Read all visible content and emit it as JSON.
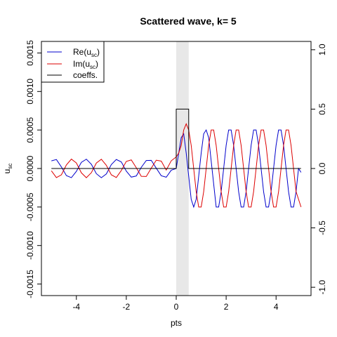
{
  "chart_data": {
    "type": "line",
    "title": "Scattered wave, k= 5",
    "xlabel": "pts",
    "ylabel": "u",
    "ylabel_sub": "sc",
    "xlim": [
      -5.4,
      5.4
    ],
    "ylim_left": [
      -0.00165,
      0.00165
    ],
    "ylim_right": [
      -1.07,
      1.07
    ],
    "x_ticks": [
      -4,
      -2,
      0,
      2,
      4
    ],
    "x_tick_labels": [
      "-4",
      "-2",
      "0",
      "2",
      "4"
    ],
    "y_left_ticks": [
      -0.0015,
      -0.001,
      -0.0005,
      0,
      0.0005,
      0.001,
      0.0015
    ],
    "y_left_tick_labels": [
      "-0.0015",
      "-0.0010",
      "-0.0005",
      "0.0000",
      "0.0005",
      "0.0010",
      "0.0015"
    ],
    "y_right_ticks": [
      -1.0,
      -0.5,
      0.0,
      0.5,
      1.0
    ],
    "y_right_tick_labels": [
      "-1.0",
      "-0.5",
      "0.0",
      "0.5",
      "1.0"
    ],
    "shaded_region": {
      "x": [
        0,
        0.5
      ],
      "color": "#e8e8e8"
    },
    "legend": {
      "placement": "top-left",
      "entries": [
        {
          "main": "Re(u",
          "sub": "sc",
          "tail": ")",
          "color": "#0000cc"
        },
        {
          "main": "Im(u",
          "sub": "sc",
          "tail": ")",
          "color": "#dd0000"
        },
        {
          "main": "coeffs.",
          "sub": "",
          "tail": "",
          "color": "#000000"
        }
      ]
    },
    "series": [
      {
        "name": "Re(usc)",
        "color": "#0000cc",
        "axis": "left",
        "x": [
          -5.0,
          -4.8,
          -4.6,
          -4.4,
          -4.2,
          -4.0,
          -3.8,
          -3.6,
          -3.4,
          -3.2,
          -3.0,
          -2.8,
          -2.6,
          -2.4,
          -2.2,
          -2.0,
          -1.8,
          -1.6,
          -1.4,
          -1.2,
          -1.0,
          -0.8,
          -0.6,
          -0.4,
          -0.2,
          0.0,
          0.1,
          0.2,
          0.3,
          0.4,
          0.5,
          0.6,
          0.7,
          0.8,
          0.9,
          1.0,
          1.1,
          1.2,
          1.3,
          1.4,
          1.5,
          1.6,
          1.7,
          1.8,
          1.9,
          2.0,
          2.1,
          2.2,
          2.3,
          2.4,
          2.5,
          2.6,
          2.7,
          2.8,
          2.9,
          3.0,
          3.1,
          3.2,
          3.3,
          3.4,
          3.5,
          3.6,
          3.7,
          3.8,
          3.9,
          4.0,
          4.1,
          4.2,
          4.3,
          4.4,
          4.5,
          4.6,
          4.7,
          4.8,
          4.9,
          5.0
        ],
        "y": [
          9.9e-05,
          0.000117,
          2e-05,
          -9.2e-05,
          -0.000119,
          -3.7e-05,
          8e-05,
          0.000121,
          5.5e-05,
          -6.7e-05,
          -0.00012,
          -7.1e-05,
          5.1e-05,
          0.000117,
          8.5e-05,
          -3.4e-05,
          -0.000112,
          -9.7e-05,
          1.5e-05,
          0.000104,
          0.000106,
          4e-06,
          -9.4e-05,
          -0.000113,
          -2.2e-05,
          0.0,
          0.0002,
          0.0004,
          0.00045,
          0.0002,
          -0.0001,
          -0.0004,
          -0.0005,
          -0.0004,
          -0.0001,
          0.0002,
          0.00045,
          0.0005,
          0.0004,
          0.0001,
          -0.0002,
          -0.0005,
          -0.0005,
          -0.0003,
          0.0,
          0.0003,
          0.0005,
          0.0005,
          0.0003,
          0.0,
          -0.0003,
          -0.0005,
          -0.0005,
          -0.0003,
          0.0,
          0.0003,
          0.0005,
          0.0005,
          0.0003,
          0.0,
          -0.0003,
          -0.0005,
          -0.0005,
          -0.0003,
          0.0,
          0.0003,
          0.0005,
          0.0005,
          0.0003,
          0.0,
          -0.0003,
          -0.0005,
          -0.0005,
          -0.0003,
          0.0,
          -5e-05
        ]
      },
      {
        "name": "Im(usc)",
        "color": "#dd0000",
        "axis": "left",
        "x": [
          -5.0,
          -4.8,
          -4.6,
          -4.4,
          -4.2,
          -4.0,
          -3.8,
          -3.6,
          -3.4,
          -3.2,
          -3.0,
          -2.8,
          -2.6,
          -2.4,
          -2.2,
          -2.0,
          -1.8,
          -1.6,
          -1.4,
          -1.2,
          -1.0,
          -0.8,
          -0.6,
          -0.4,
          -0.2,
          0.0,
          0.1,
          0.2,
          0.3,
          0.4,
          0.5,
          0.6,
          0.7,
          0.8,
          0.9,
          1.0,
          1.1,
          1.2,
          1.3,
          1.4,
          1.5,
          1.6,
          1.7,
          1.8,
          1.9,
          2.0,
          2.1,
          2.2,
          2.3,
          2.4,
          2.5,
          2.6,
          2.7,
          2.8,
          2.9,
          3.0,
          3.1,
          3.2,
          3.3,
          3.4,
          3.5,
          3.6,
          3.7,
          3.8,
          3.9,
          4.0,
          4.1,
          4.2,
          4.3,
          4.4,
          4.5,
          4.6,
          4.7,
          4.8,
          4.9,
          5.0
        ],
        "y": [
          -3e-05,
          -0.000118,
          -8.2e-05,
          4.6e-05,
          0.000122,
          7.2e-05,
          -5.6e-05,
          -0.00012,
          -5.4e-05,
          7.1e-05,
          0.00012,
          4.2e-05,
          -8.2e-05,
          -0.000117,
          -2.6e-05,
          9.2e-05,
          0.000112,
          1e-05,
          -0.000101,
          -0.000104,
          5e-06,
          0.000108,
          9.6e-05,
          -2e-05,
          0.0001,
          0.00015,
          0.0002,
          0.0003,
          0.0005,
          0.00058,
          0.0005,
          0.0003,
          0.0,
          -0.0003,
          -0.0005,
          -0.0005,
          -0.0003,
          0.0,
          0.0003,
          0.0005,
          0.0005,
          0.0003,
          0.0,
          -0.0003,
          -0.0005,
          -0.0005,
          -0.0003,
          0.0,
          0.0003,
          0.0005,
          0.0005,
          0.0003,
          0.0,
          -0.0003,
          -0.0005,
          -0.0005,
          -0.0003,
          0.0,
          0.0003,
          0.0005,
          0.0005,
          0.0003,
          0.0,
          -0.0003,
          -0.0005,
          -0.0005,
          -0.0003,
          0.0,
          0.0003,
          0.0005,
          0.0005,
          0.0003,
          0.0,
          -0.0003,
          -0.0004,
          -0.0005
        ]
      },
      {
        "name": "coeffs.",
        "color": "#000000",
        "axis": "right",
        "x": [
          -5.0,
          0.0,
          0.0,
          0.5,
          0.5,
          5.0
        ],
        "y": [
          0.0,
          0.0,
          0.5,
          0.5,
          0.0,
          0.0
        ]
      }
    ]
  }
}
